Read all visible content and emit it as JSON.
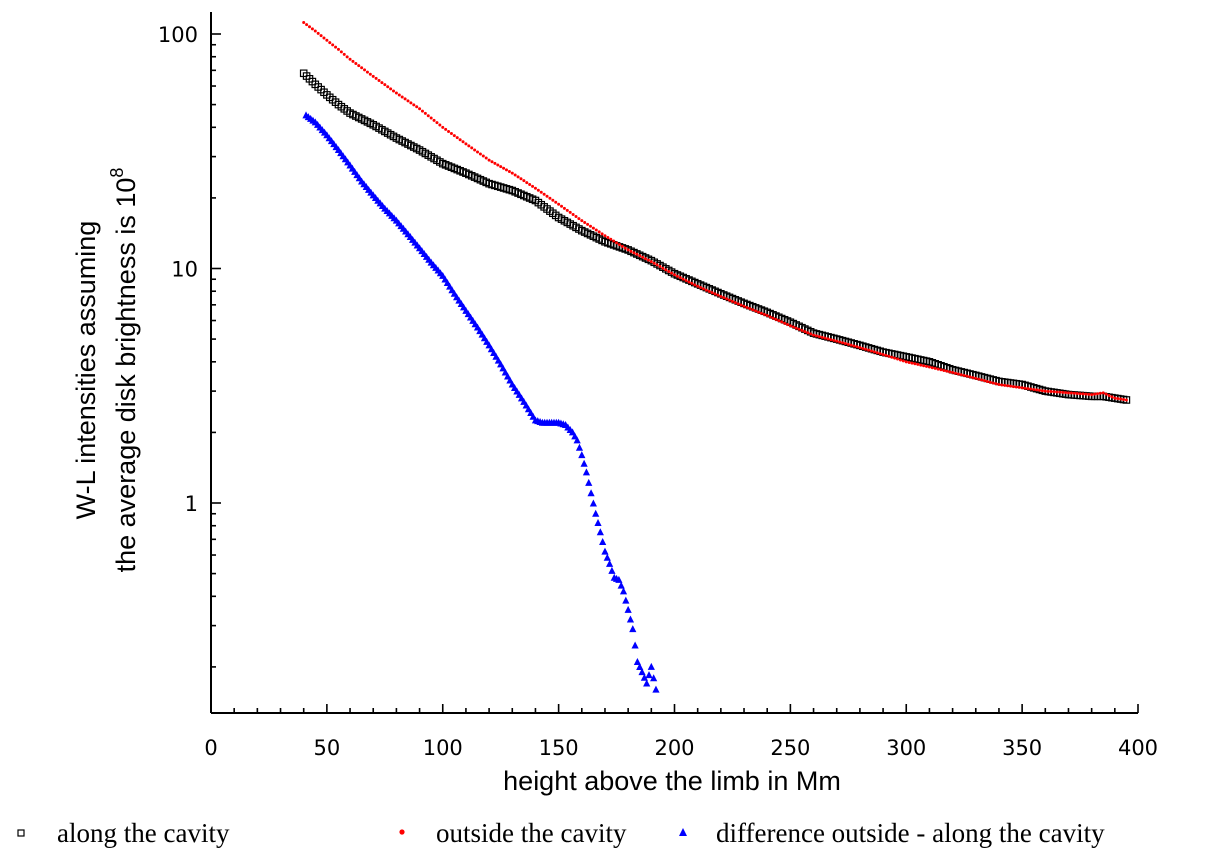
{
  "chart_data": {
    "type": "scatter",
    "title": "",
    "xlabel": "height above the limb in Mm",
    "ylabel": {
      "line1": "W-L intensities assuming",
      "line2_prefix": "the average disk brightness is 10",
      "line2_superscript": "8"
    },
    "xlim": [
      0,
      400
    ],
    "ylim": [
      0.13,
      120
    ],
    "y_scale": "log",
    "x_ticks": [
      "0",
      "50",
      "100",
      "150",
      "200",
      "250",
      "300",
      "350",
      "400"
    ],
    "y_ticks": [
      "1",
      "10",
      "100"
    ],
    "grid": false,
    "legend_position": "bottom",
    "series": [
      {
        "name": "along the cavity",
        "marker": "open-square",
        "color": "#000000",
        "x": [
          40,
          45,
          50,
          55,
          60,
          70,
          80,
          90,
          100,
          110,
          120,
          130,
          140,
          150,
          160,
          170,
          180,
          190,
          200,
          210,
          220,
          230,
          240,
          250,
          260,
          270,
          280,
          290,
          300,
          310,
          320,
          330,
          340,
          350,
          360,
          370,
          380,
          385,
          390,
          395
        ],
        "y": [
          68,
          61,
          55,
          50,
          46,
          41,
          36,
          32,
          28,
          25.5,
          23,
          21.5,
          19.5,
          16.5,
          14.5,
          13,
          12,
          10.8,
          9.5,
          8.6,
          7.8,
          7.1,
          6.5,
          5.9,
          5.3,
          5.0,
          4.7,
          4.4,
          4.2,
          4.0,
          3.7,
          3.5,
          3.3,
          3.2,
          3.0,
          2.9,
          2.85,
          2.85,
          2.8,
          2.75
        ]
      },
      {
        "name": "outside the cavity",
        "marker": "dot",
        "color": "#ff0000",
        "x": [
          40,
          45,
          50,
          55,
          60,
          70,
          80,
          90,
          100,
          110,
          120,
          130,
          140,
          150,
          160,
          170,
          180,
          190,
          200,
          210,
          220,
          230,
          240,
          250,
          260,
          270,
          280,
          290,
          300,
          310,
          320,
          330,
          340,
          350,
          360,
          370,
          380,
          385,
          390,
          395
        ],
        "y": [
          112,
          103,
          94,
          86,
          78,
          66,
          56,
          48,
          40,
          34,
          29,
          25.5,
          22,
          18.8,
          16,
          13.8,
          12,
          10.7,
          9.4,
          8.4,
          7.6,
          6.9,
          6.3,
          5.7,
          5.2,
          4.9,
          4.6,
          4.3,
          4.0,
          3.8,
          3.6,
          3.4,
          3.2,
          3.1,
          3.0,
          2.95,
          2.9,
          2.95,
          2.8,
          2.75
        ]
      },
      {
        "name": "difference outside - along the cavity",
        "marker": "filled-triangle",
        "color": "#0000ff",
        "x": [
          41,
          45,
          50,
          55,
          60,
          65,
          70,
          75,
          80,
          85,
          90,
          95,
          100,
          105,
          110,
          115,
          120,
          125,
          130,
          135,
          140,
          143,
          146,
          150,
          153,
          156,
          158,
          160,
          162,
          164,
          166,
          168,
          170,
          172,
          174,
          176,
          178,
          180,
          182,
          184,
          186,
          188,
          190,
          192
        ],
        "y": [
          45,
          42,
          37,
          32,
          27.5,
          23.5,
          20.5,
          18,
          16,
          14,
          12.2,
          10.6,
          9.3,
          7.8,
          6.6,
          5.6,
          4.7,
          3.9,
          3.2,
          2.7,
          2.25,
          2.2,
          2.2,
          2.2,
          2.15,
          2.0,
          1.85,
          1.6,
          1.35,
          1.1,
          0.9,
          0.75,
          0.62,
          0.55,
          0.48,
          0.47,
          0.42,
          0.35,
          0.29,
          0.21,
          0.19,
          0.17,
          0.2,
          0.16
        ]
      }
    ]
  }
}
